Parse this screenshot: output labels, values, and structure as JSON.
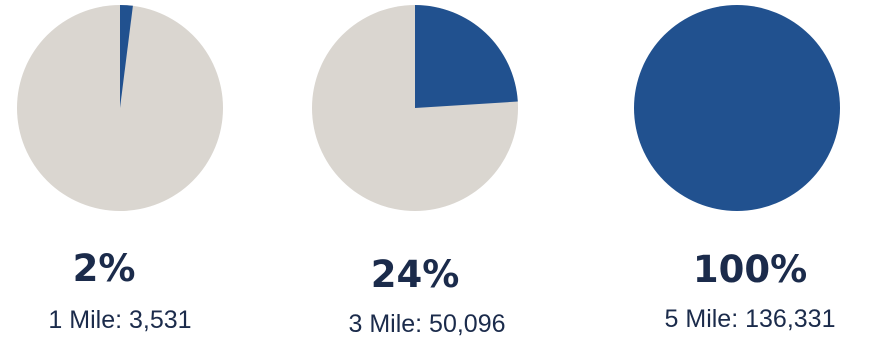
{
  "colors": {
    "filled": "#21518f",
    "remainder": "#dad6d0",
    "text": "#1b2b4b"
  },
  "chart_data": [
    {
      "type": "pie",
      "values": [
        2,
        98
      ],
      "percent_label": "2%",
      "caption": "1 Mile: 3,531"
    },
    {
      "type": "pie",
      "values": [
        24,
        76
      ],
      "percent_label": "24%",
      "caption": "3 Mile: 50,096"
    },
    {
      "type": "pie",
      "values": [
        100,
        0
      ],
      "percent_label": "100%",
      "caption": "5 Mile: 136,331"
    }
  ]
}
